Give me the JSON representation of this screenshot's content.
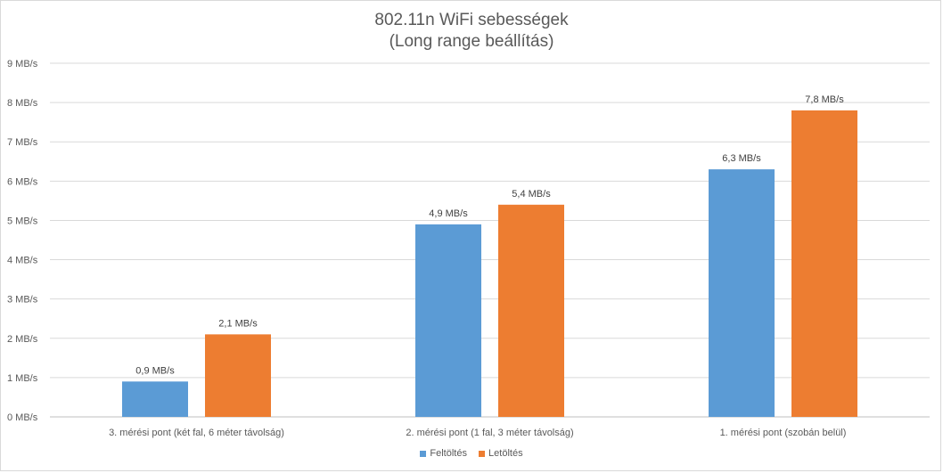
{
  "chart_data": {
    "type": "bar",
    "title": "802.11n WiFi sebességek",
    "subtitle": "(Long range beállítás)",
    "categories": [
      "3. mérési pont (két fal, 6 méter távolság)",
      "2. mérési pont (1 fal, 3 méter távolság)",
      "1. mérési pont (szobán belül)"
    ],
    "series": [
      {
        "name": "Feltöltés",
        "color": "#5b9bd5",
        "values": [
          0.9,
          4.9,
          6.3
        ],
        "labels": [
          "0,9 MB/s",
          "4,9 MB/s",
          "6,3 MB/s"
        ]
      },
      {
        "name": "Letöltés",
        "color": "#ed7d31",
        "values": [
          2.1,
          5.4,
          7.8
        ],
        "labels": [
          "2,1 MB/s",
          "5,4 MB/s",
          "7,8 MB/s"
        ]
      }
    ],
    "ylim": [
      0,
      9
    ],
    "yticks": [
      "0 MB/s",
      "1 MB/s",
      "2 MB/s",
      "3 MB/s",
      "4 MB/s",
      "5 MB/s",
      "6 MB/s",
      "7 MB/s",
      "8 MB/s",
      "9 MB/s"
    ],
    "grid": true,
    "legend": "bottom"
  }
}
